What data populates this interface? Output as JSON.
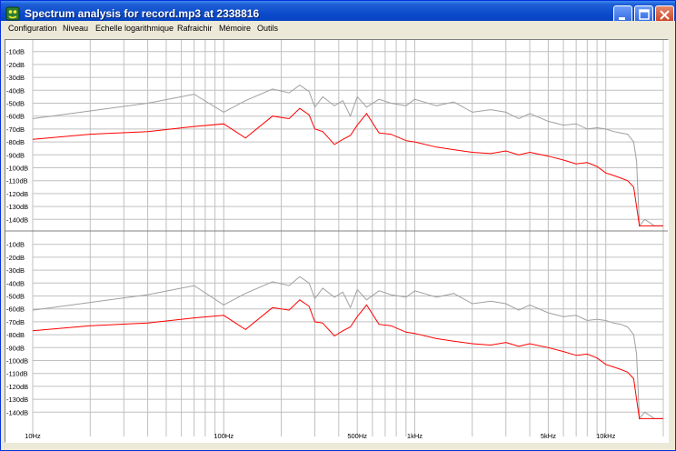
{
  "window": {
    "title": "Spectrum analysis for record.mp3 at 2338816"
  },
  "menu": [
    "Configuration",
    "Niveau",
    "Echelle logarithmique",
    "Rafraichir",
    "Mémoire",
    "Outils"
  ],
  "chart_data": {
    "type": "line",
    "x_scale": "log",
    "xlim": [
      10,
      20000
    ],
    "ylim": [
      -150,
      0
    ],
    "grid": true,
    "y_tick_labels": [
      "-10dB",
      "-20dB",
      "-30dB",
      "-40dB",
      "-50dB",
      "-60dB",
      "-70dB",
      "-80dB",
      "-90dB",
      "-100dB",
      "-110dB",
      "-120dB",
      "-130dB",
      "-140dB"
    ],
    "y_ticks": [
      -10,
      -20,
      -30,
      -40,
      -50,
      -60,
      -70,
      -80,
      -90,
      -100,
      -110,
      -120,
      -130,
      -140
    ],
    "x_tick_labels": [
      {
        "label": "10Hz",
        "value": 10
      },
      {
        "label": "100Hz",
        "value": 100
      },
      {
        "label": "500Hz",
        "value": 500
      },
      {
        "label": "1kHz",
        "value": 1000
      },
      {
        "label": "5kHz",
        "value": 5000
      },
      {
        "label": "10kHz",
        "value": 10000
      }
    ],
    "colors": {
      "peak": "#a0a0a0",
      "current": "#ff0000",
      "grid": "#c0c0c0"
    },
    "panels": [
      {
        "name": "",
        "series": [
          {
            "name": "",
            "color": "#a0a0a0",
            "x": [
              10,
              20,
              40,
              70,
              100,
              130,
              180,
              220,
              250,
              280,
              300,
              330,
              380,
              420,
              460,
              500,
              560,
              650,
              750,
              900,
              1000,
              1300,
              1600,
              2000,
              2500,
              3000,
              3500,
              4000,
              5000,
              6000,
              7000,
              8000,
              9000,
              10000,
              11000,
              12000,
              13000,
              14000,
              14500,
              15000,
              16000,
              18000,
              20000
            ],
            "y": [
              -62,
              -56,
              -50,
              -43,
              -57,
              -48,
              -39,
              -42,
              -36,
              -41,
              -53,
              -45,
              -52,
              -48,
              -60,
              -45,
              -53,
              -47,
              -50,
              -52,
              -47,
              -52,
              -49,
              -57,
              -55,
              -57,
              -62,
              -58,
              -64,
              -67,
              -66,
              -70,
              -69,
              -70,
              -72,
              -73,
              -74,
              -80,
              -95,
              -145,
              -140,
              -145,
              -145
            ]
          },
          {
            "name": "",
            "color": "#ff0000",
            "x": [
              10,
              20,
              40,
              70,
              100,
              130,
              180,
              220,
              250,
              280,
              300,
              330,
              380,
              420,
              460,
              500,
              560,
              650,
              750,
              900,
              1000,
              1300,
              1600,
              2000,
              2500,
              3000,
              3500,
              4000,
              5000,
              6000,
              7000,
              8000,
              9000,
              10000,
              11000,
              12000,
              13000,
              14000,
              14500,
              15000,
              16000,
              18000,
              20000
            ],
            "y": [
              -78,
              -74,
              -72,
              -68,
              -66,
              -77,
              -60,
              -62,
              -54,
              -59,
              -70,
              -72,
              -82,
              -78,
              -75,
              -67,
              -58,
              -73,
              -74,
              -79,
              -80,
              -84,
              -86,
              -88,
              -89,
              -87,
              -90,
              -88,
              -91,
              -94,
              -97,
              -96,
              -99,
              -104,
              -106,
              -108,
              -110,
              -115,
              -130,
              -145,
              -145,
              -145,
              -145
            ]
          }
        ]
      },
      {
        "name": "",
        "series": [
          {
            "name": "",
            "color": "#a0a0a0",
            "x": [
              10,
              20,
              40,
              70,
              100,
              130,
              180,
              220,
              250,
              280,
              300,
              330,
              380,
              420,
              460,
              500,
              560,
              650,
              750,
              900,
              1000,
              1300,
              1600,
              2000,
              2500,
              3000,
              3500,
              4000,
              5000,
              6000,
              7000,
              8000,
              9000,
              10000,
              11000,
              12000,
              13000,
              14000,
              14500,
              15000,
              16000,
              18000,
              20000
            ],
            "y": [
              -61,
              -55,
              -49,
              -42,
              -57,
              -48,
              -39,
              -42,
              -35,
              -40,
              -52,
              -44,
              -51,
              -47,
              -59,
              -45,
              -53,
              -46,
              -49,
              -51,
              -46,
              -51,
              -48,
              -56,
              -54,
              -56,
              -61,
              -57,
              -63,
              -66,
              -65,
              -69,
              -68,
              -69,
              -71,
              -72,
              -74,
              -80,
              -95,
              -145,
              -140,
              -145,
              -145
            ]
          },
          {
            "name": "",
            "color": "#ff0000",
            "x": [
              10,
              20,
              40,
              70,
              100,
              130,
              180,
              220,
              250,
              280,
              300,
              330,
              380,
              420,
              460,
              500,
              560,
              650,
              750,
              900,
              1000,
              1300,
              1600,
              2000,
              2500,
              3000,
              3500,
              4000,
              5000,
              6000,
              7000,
              8000,
              9000,
              10000,
              11000,
              12000,
              13000,
              14000,
              14500,
              15000,
              16000,
              18000,
              20000
            ],
            "y": [
              -77,
              -73,
              -71,
              -67,
              -65,
              -76,
              -59,
              -61,
              -53,
              -58,
              -70,
              -71,
              -81,
              -77,
              -74,
              -66,
              -57,
              -72,
              -73,
              -78,
              -79,
              -83,
              -85,
              -87,
              -88,
              -86,
              -89,
              -87,
              -90,
              -93,
              -96,
              -95,
              -98,
              -103,
              -105,
              -107,
              -109,
              -114,
              -130,
              -145,
              -145,
              -145,
              -145
            ]
          }
        ]
      }
    ]
  }
}
